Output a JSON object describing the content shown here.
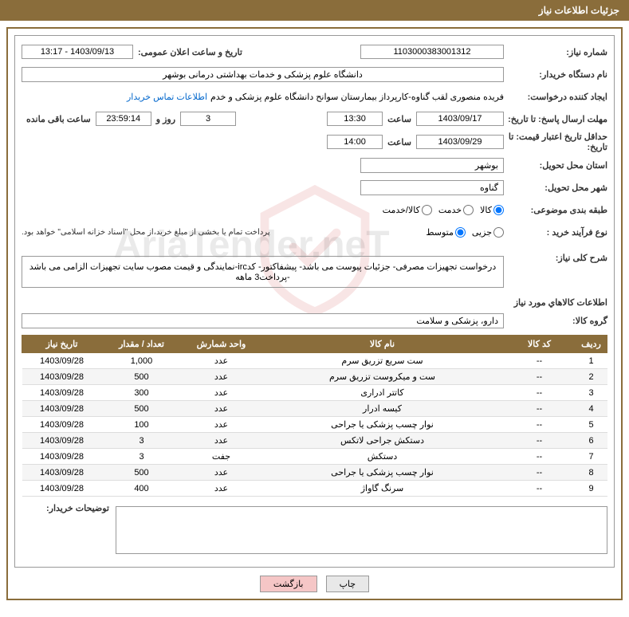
{
  "header": {
    "title": "جزئیات اطلاعات نیاز"
  },
  "form": {
    "need_number_label": "شماره نیاز:",
    "need_number": "1103000383001312",
    "announce_date_label": "تاریخ و ساعت اعلان عمومی:",
    "announce_date": "1403/09/13 - 13:17",
    "buyer_org_label": "نام دستگاه خریدار:",
    "buyer_org": "دانشگاه علوم پزشکی و خدمات بهداشتی درمانی بوشهر",
    "requester_label": "ایجاد کننده درخواست:",
    "requester": "فریده منصوری لقب گناوه-کارپرداز بیمارستان سوانح دانشگاه علوم پزشکی و خدم",
    "buyer_contact_link": "اطلاعات تماس خریدار",
    "response_deadline_label": "مهلت ارسال پاسخ: تا تاریخ:",
    "response_date": "1403/09/17",
    "time_label": "ساعت",
    "response_time": "13:30",
    "remaining_days": "3",
    "day_and_label": "روز و",
    "remaining_clock": "23:59:14",
    "remaining_hours_label": "ساعت باقی مانده",
    "price_validity_label": "حداقل تاریخ اعتبار قیمت: تا تاریخ:",
    "price_validity_date": "1403/09/29",
    "price_validity_time": "14:00",
    "delivery_province_label": "استان محل تحویل:",
    "delivery_province": "بوشهر",
    "delivery_city_label": "شهر محل تحویل:",
    "delivery_city": "گناوه",
    "category_label": "طبقه بندی موضوعی:",
    "cat_goods": "کالا",
    "cat_service": "خدمت",
    "cat_goods_service": "کالا/خدمت",
    "purchase_process_label": "نوع فرآیند خرید :",
    "proc_minor": "جزیی",
    "proc_medium": "متوسط",
    "payment_note": "پرداخت تمام یا بخشی از مبلغ خرید،از محل \"اسناد خزانه اسلامی\" خواهد بود.",
    "need_desc_label": "شرح کلی نیاز:",
    "need_desc": "درخواست تجهیزات مصرفی- جزئیات پیوست می باشد- پیشفاکتور- کدirc-نمایندگی و قیمت مصوب سایت تجهیزات الزامی می باشد -پرداخت3 ماهه",
    "goods_info_title": "اطلاعات کالاهاي مورد نیاز",
    "goods_group_label": "گروه کالا:",
    "goods_group": "دارو، پزشکی و سلامت",
    "buyer_notes_label": "توضیحات خریدار:"
  },
  "table": {
    "headers": {
      "row": "ردیف",
      "code": "کد کالا",
      "name": "نام کالا",
      "unit": "واحد شمارش",
      "qty": "تعداد / مقدار",
      "date": "تاریخ نیاز"
    },
    "rows": [
      {
        "n": "1",
        "code": "--",
        "name": "ست سریع تزریق سرم",
        "unit": "عدد",
        "qty": "1,000",
        "date": "1403/09/28"
      },
      {
        "n": "2",
        "code": "--",
        "name": "ست و میکروست تزریق سرم",
        "unit": "عدد",
        "qty": "500",
        "date": "1403/09/28"
      },
      {
        "n": "3",
        "code": "--",
        "name": "کاتتر ادراری",
        "unit": "عدد",
        "qty": "300",
        "date": "1403/09/28"
      },
      {
        "n": "4",
        "code": "--",
        "name": "کیسه ادرار",
        "unit": "عدد",
        "qty": "500",
        "date": "1403/09/28"
      },
      {
        "n": "5",
        "code": "--",
        "name": "نوار چسب پزشکی یا جراحی",
        "unit": "عدد",
        "qty": "100",
        "date": "1403/09/28"
      },
      {
        "n": "6",
        "code": "--",
        "name": "دستکش جراحی لاتکس",
        "unit": "عدد",
        "qty": "3",
        "date": "1403/09/28"
      },
      {
        "n": "7",
        "code": "--",
        "name": "دستکش",
        "unit": "جفت",
        "qty": "3",
        "date": "1403/09/28"
      },
      {
        "n": "8",
        "code": "--",
        "name": "نوار چسب پزشکی یا جراحی",
        "unit": "عدد",
        "qty": "500",
        "date": "1403/09/28"
      },
      {
        "n": "9",
        "code": "--",
        "name": "سرنگ گاواژ",
        "unit": "عدد",
        "qty": "400",
        "date": "1403/09/28"
      }
    ]
  },
  "buttons": {
    "print": "چاپ",
    "back": "بازگشت"
  },
  "watermark_text": "AriaTender.neT"
}
